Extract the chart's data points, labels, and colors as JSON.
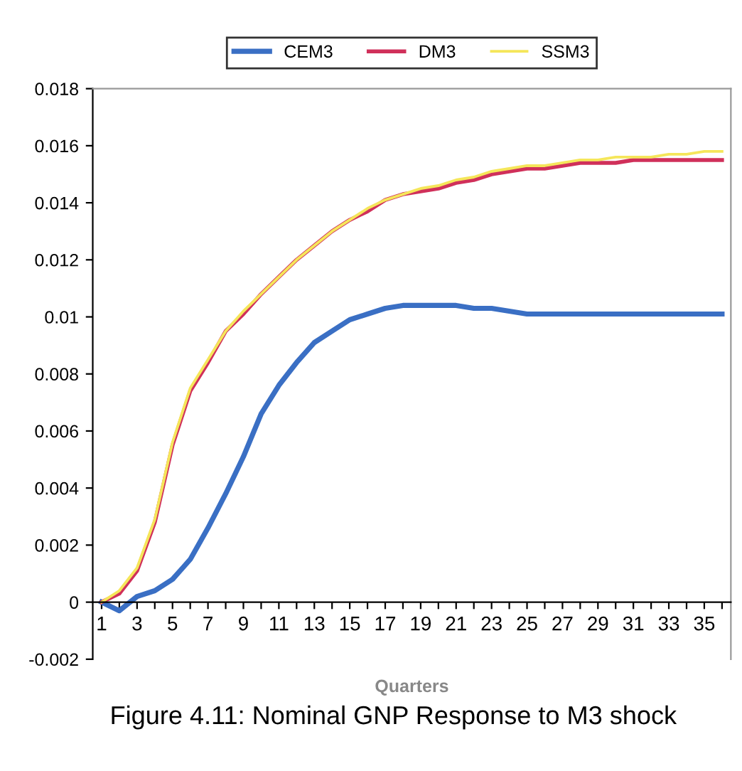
{
  "chart_data": {
    "type": "line",
    "xlabel": "Quarters",
    "categories": [
      "1",
      null,
      "3",
      null,
      "5",
      null,
      "7",
      null,
      "9",
      null,
      "11",
      null,
      "13",
      null,
      "15",
      null,
      "17",
      null,
      "19",
      null,
      "21",
      null,
      "23",
      null,
      "25",
      null,
      "27",
      null,
      "29",
      null,
      "31",
      null,
      "33",
      null,
      "35",
      null
    ],
    "series": [
      {
        "name": "CEM3",
        "color": "#3a6fc4",
        "values": [
          0,
          -0.0003,
          0.0002,
          0.0004,
          0.0008,
          0.0015,
          0.0026,
          0.0038,
          0.0051,
          0.0066,
          0.0076,
          0.0084,
          0.0091,
          0.0095,
          0.0099,
          0.0101,
          0.0103,
          0.0104,
          0.0104,
          0.0104,
          0.0104,
          0.0103,
          0.0103,
          0.0102,
          0.0101,
          0.0101,
          0.0101,
          0.0101,
          0.0101,
          0.0101,
          0.0101,
          0.0101,
          0.0101,
          0.0101,
          0.0101,
          0.0101
        ]
      },
      {
        "name": "DM3",
        "color": "#d0305a",
        "values": [
          0,
          0.0003,
          0.0011,
          0.0028,
          0.0055,
          0.0074,
          0.0084,
          0.0095,
          0.0101,
          0.0108,
          0.0114,
          0.012,
          0.0125,
          0.013,
          0.0134,
          0.0137,
          0.0141,
          0.0143,
          0.0144,
          0.0145,
          0.0147,
          0.0148,
          0.015,
          0.0151,
          0.0152,
          0.0152,
          0.0153,
          0.0154,
          0.0154,
          0.0154,
          0.0155,
          0.0155,
          0.0155,
          0.0155,
          0.0155,
          0.0155
        ]
      },
      {
        "name": "SSM3",
        "color": "#f5e65a",
        "values": [
          0,
          0.0004,
          0.0012,
          0.0029,
          0.0056,
          0.0075,
          0.0085,
          0.0095,
          0.0102,
          0.0108,
          0.0114,
          0.012,
          0.0125,
          0.013,
          0.0134,
          0.0138,
          0.0141,
          0.0143,
          0.0145,
          0.0146,
          0.0148,
          0.0149,
          0.0151,
          0.0152,
          0.0153,
          0.0153,
          0.0154,
          0.0155,
          0.0155,
          0.0156,
          0.0156,
          0.0156,
          0.0157,
          0.0157,
          0.0158,
          0.0158
        ]
      }
    ],
    "ylim": [
      -0.002,
      0.018
    ],
    "yticks": [
      -0.002,
      0,
      0.002,
      0.004,
      0.006,
      0.008,
      0.01,
      0.012,
      0.014,
      0.016,
      0.018
    ],
    "grid": false,
    "legend": "top",
    "marker": "none",
    "line_style": "solid",
    "annotations": [
      "Figure 4.11: Nominal GNP Response to M3 shock"
    ]
  }
}
